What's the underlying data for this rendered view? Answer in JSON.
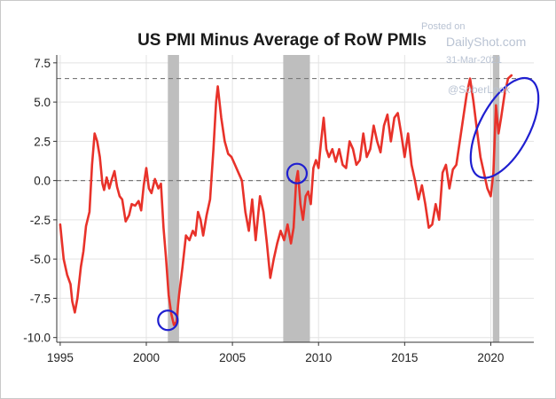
{
  "chart_data": {
    "type": "line",
    "title": "US PMI Minus Average of RoW PMIs",
    "xlabel": "",
    "ylabel": "",
    "xlim": [
      1994.8,
      2022.5
    ],
    "ylim": [
      -10.3,
      8.0
    ],
    "x_ticks": [
      1995,
      2000,
      2005,
      2010,
      2015,
      2020
    ],
    "x_tick_labels": [
      "1995",
      "2000",
      "2005",
      "2010",
      "2015",
      "2020"
    ],
    "y_ticks": [
      7.5,
      5.0,
      2.5,
      0.0,
      -2.5,
      -5.0,
      -7.5,
      -10.0
    ],
    "y_tick_labels": [
      "7.5",
      "5.0",
      "2.5",
      "0.0",
      "-2.5",
      "-5.0",
      "-7.5",
      "-10.0"
    ],
    "grid": true,
    "legend": "none",
    "series": [
      {
        "color": "#e8322a",
        "x": [
          1995.0,
          1995.2,
          1995.4,
          1995.6,
          1995.7,
          1995.85,
          1996.0,
          1996.2,
          1996.35,
          1996.5,
          1996.7,
          1996.85,
          1997.0,
          1997.15,
          1997.3,
          1997.45,
          1997.55,
          1997.7,
          1997.85,
          1998.0,
          1998.15,
          1998.3,
          1998.45,
          1998.6,
          1998.8,
          1999.0,
          1999.15,
          1999.35,
          1999.55,
          1999.7,
          1999.85,
          2000.0,
          2000.15,
          2000.3,
          2000.5,
          2000.7,
          2000.85,
          2001.0,
          2001.15,
          2001.3,
          2001.45,
          2001.6,
          2001.75,
          2001.9,
          2002.1,
          2002.3,
          2002.5,
          2002.7,
          2002.85,
          2003.0,
          2003.15,
          2003.3,
          2003.5,
          2003.7,
          2003.9,
          2004.05,
          2004.15,
          2004.35,
          2004.55,
          2004.75,
          2004.95,
          2005.15,
          2005.35,
          2005.55,
          2005.75,
          2005.95,
          2006.15,
          2006.35,
          2006.6,
          2006.8,
          2007.0,
          2007.2,
          2007.4,
          2007.6,
          2007.8,
          2008.0,
          2008.2,
          2008.4,
          2008.55,
          2008.7,
          2008.8,
          2008.95,
          2009.1,
          2009.25,
          2009.4,
          2009.55,
          2009.7,
          2009.85,
          2010.0,
          2010.15,
          2010.3,
          2010.45,
          2010.6,
          2010.8,
          2011.0,
          2011.2,
          2011.4,
          2011.6,
          2011.8,
          2012.0,
          2012.2,
          2012.4,
          2012.6,
          2012.8,
          2013.0,
          2013.2,
          2013.4,
          2013.6,
          2013.8,
          2014.0,
          2014.2,
          2014.4,
          2014.6,
          2014.8,
          2015.0,
          2015.2,
          2015.4,
          2015.6,
          2015.8,
          2016.0,
          2016.2,
          2016.4,
          2016.6,
          2016.8,
          2017.0,
          2017.2,
          2017.4,
          2017.6,
          2017.8,
          2018.0,
          2018.2,
          2018.4,
          2018.6,
          2018.8,
          2019.0,
          2019.2,
          2019.4,
          2019.6,
          2019.8,
          2020.0,
          2020.15,
          2020.3,
          2020.45,
          2020.6,
          2020.8,
          2021.0,
          2021.2
        ],
        "y": [
          -2.8,
          -5.0,
          -6.0,
          -6.6,
          -7.7,
          -8.4,
          -7.5,
          -5.5,
          -4.5,
          -2.9,
          -2.0,
          1.0,
          3.0,
          2.5,
          1.5,
          -0.2,
          -0.6,
          0.2,
          -0.5,
          0.1,
          0.6,
          -0.4,
          -1.0,
          -1.2,
          -2.6,
          -2.2,
          -1.5,
          -1.6,
          -1.3,
          -1.9,
          -0.3,
          0.8,
          -0.5,
          -0.8,
          0.1,
          -0.5,
          -0.2,
          -3.0,
          -5.0,
          -7.3,
          -8.5,
          -9.2,
          -9.0,
          -7.3,
          -5.5,
          -3.5,
          -3.8,
          -3.2,
          -3.5,
          -2.0,
          -2.5,
          -3.5,
          -2.2,
          -1.2,
          2.0,
          5.0,
          6.0,
          4.0,
          2.5,
          1.7,
          1.5,
          1.0,
          0.5,
          0.0,
          -2.0,
          -3.2,
          -1.2,
          -3.8,
          -1.0,
          -2.0,
          -4.0,
          -6.2,
          -5.0,
          -4.0,
          -3.2,
          -3.8,
          -2.8,
          -4.0,
          -3.0,
          0.0,
          0.6,
          -1.5,
          -2.5,
          -1.0,
          -0.7,
          -1.5,
          0.8,
          1.3,
          0.8,
          2.5,
          4.0,
          2.0,
          1.5,
          2.0,
          1.2,
          2.0,
          1.0,
          0.8,
          2.5,
          2.0,
          1.0,
          1.3,
          3.0,
          1.5,
          2.0,
          3.5,
          2.5,
          1.8,
          3.5,
          4.2,
          2.5,
          4.0,
          4.3,
          3.0,
          1.5,
          3.0,
          1.0,
          0.0,
          -1.2,
          -0.3,
          -1.5,
          -3.0,
          -2.8,
          -1.5,
          -2.5,
          0.5,
          1.0,
          -0.5,
          0.7,
          1.0,
          2.5,
          4.0,
          5.5,
          6.5,
          5.0,
          3.2,
          1.5,
          0.5,
          -0.5,
          -1.0,
          0.5,
          4.8,
          3.0,
          4.0,
          5.5,
          6.5,
          6.7
        ]
      }
    ],
    "reference_lines": [
      {
        "y": 6.5,
        "style": "dashed"
      },
      {
        "y": 0.0,
        "style": "dashed"
      }
    ],
    "shaded_periods": [
      {
        "x_start": 2001.25,
        "x_end": 2001.9
      },
      {
        "x_start": 2007.95,
        "x_end": 2009.5
      },
      {
        "x_start": 2020.12,
        "x_end": 2020.5
      }
    ],
    "annotations": [
      {
        "type": "circle",
        "x": 2001.25,
        "y": -8.9
      },
      {
        "type": "circle",
        "x": 2008.75,
        "y": 0.45
      },
      {
        "type": "ellipse",
        "x": 2020.8,
        "y": 3.35
      }
    ]
  },
  "watermark": {
    "posted_on": "Posted on",
    "site": "DailyShot.com",
    "date": "31-Mar-2021",
    "handle": "@SoberLook"
  },
  "colors": {
    "line": "#e8322a",
    "shade": "#bebebe",
    "annotation": "#1f1fd0",
    "grid": "#e3e3e3",
    "refline": "#7a7a7a"
  }
}
